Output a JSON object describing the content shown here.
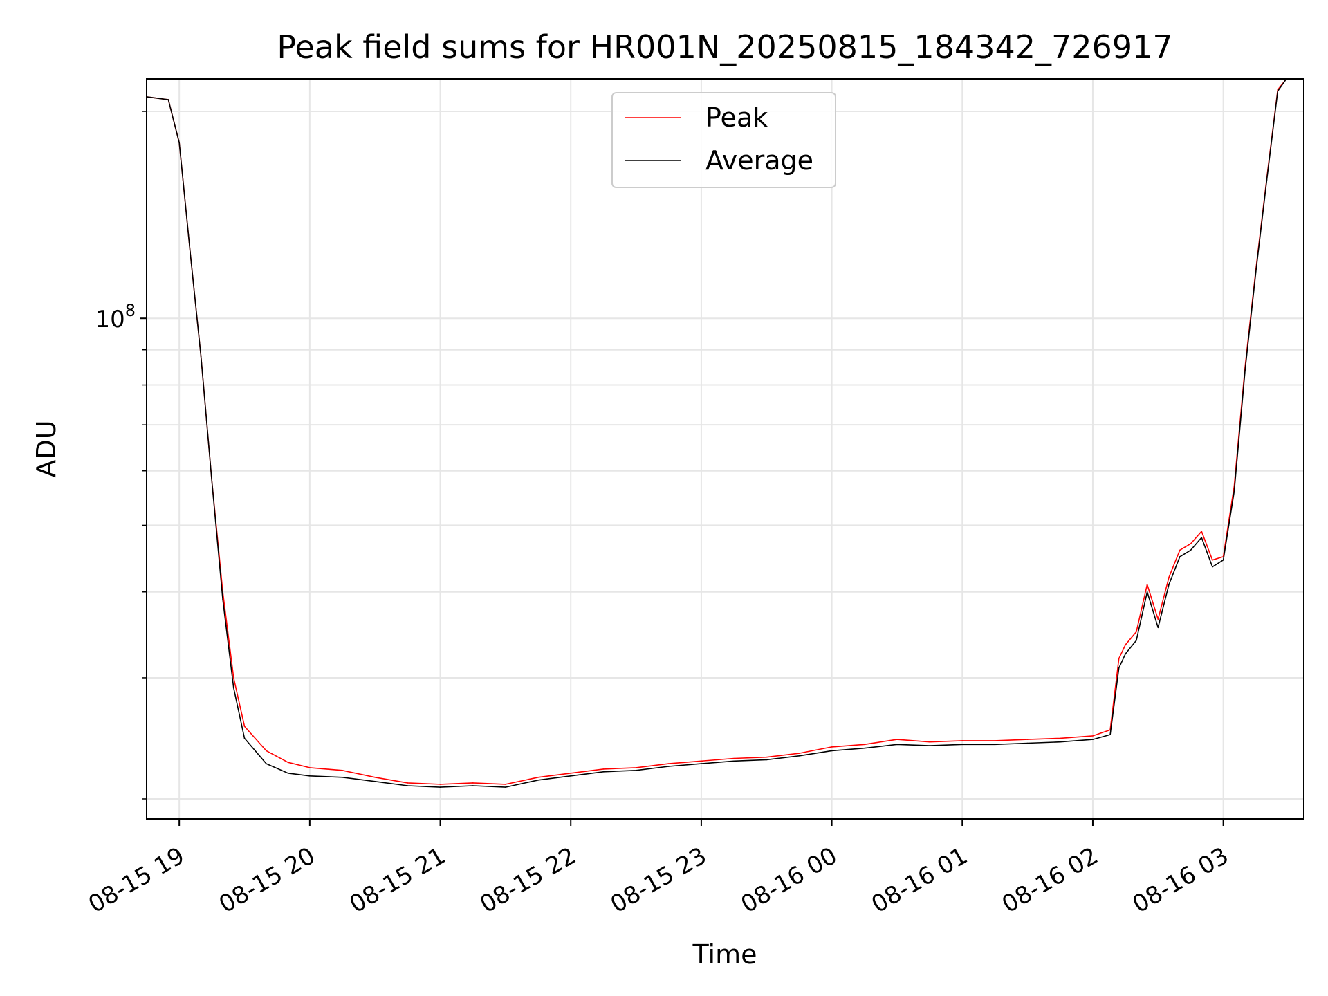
{
  "chart_data": {
    "type": "line",
    "title": "Peak field sums for HR001N_20250815_184342_726917",
    "xlabel": "Time",
    "ylabel": "ADU",
    "yscale": "log",
    "grid": true,
    "legend_position": "top-center",
    "xlim": [
      "2025-08-15 18:45",
      "2025-08-16 03:37"
    ],
    "ylim": [
      18700000,
      223000000
    ],
    "x_ticks": [
      {
        "value": "2025-08-15 19:00",
        "label": "08-15 19"
      },
      {
        "value": "2025-08-15 20:00",
        "label": "08-15 20"
      },
      {
        "value": "2025-08-15 21:00",
        "label": "08-15 21"
      },
      {
        "value": "2025-08-15 22:00",
        "label": "08-15 22"
      },
      {
        "value": "2025-08-15 23:00",
        "label": "08-15 23"
      },
      {
        "value": "2025-08-16 00:00",
        "label": "08-16 00"
      },
      {
        "value": "2025-08-16 01:00",
        "label": "08-16 01"
      },
      {
        "value": "2025-08-16 02:00",
        "label": "08-16 02"
      },
      {
        "value": "2025-08-16 03:00",
        "label": "08-16 03"
      }
    ],
    "y_major_ticks": [
      {
        "value": 100000000,
        "base": "10",
        "exponent": "8"
      }
    ],
    "y_minor_ticks": [
      20000000,
      30000000,
      40000000,
      50000000,
      60000000,
      70000000,
      80000000,
      90000000,
      200000000
    ],
    "series": [
      {
        "name": "Peak",
        "color": "#ff0000",
        "x": [
          "2025-08-15 18:45",
          "2025-08-15 18:55",
          "2025-08-15 19:00",
          "2025-08-15 19:05",
          "2025-08-15 19:10",
          "2025-08-15 19:15",
          "2025-08-15 19:20",
          "2025-08-15 19:25",
          "2025-08-15 19:30",
          "2025-08-15 19:40",
          "2025-08-15 19:50",
          "2025-08-15 20:00",
          "2025-08-15 20:15",
          "2025-08-15 20:30",
          "2025-08-15 20:45",
          "2025-08-15 21:00",
          "2025-08-15 21:15",
          "2025-08-15 21:30",
          "2025-08-15 21:45",
          "2025-08-15 22:00",
          "2025-08-15 22:15",
          "2025-08-15 22:30",
          "2025-08-15 22:45",
          "2025-08-15 23:00",
          "2025-08-15 23:15",
          "2025-08-15 23:30",
          "2025-08-15 23:45",
          "2025-08-16 00:00",
          "2025-08-16 00:15",
          "2025-08-16 00:30",
          "2025-08-16 00:45",
          "2025-08-16 01:00",
          "2025-08-16 01:15",
          "2025-08-16 01:30",
          "2025-08-16 01:45",
          "2025-08-16 02:00",
          "2025-08-16 02:08",
          "2025-08-16 02:12",
          "2025-08-16 02:15",
          "2025-08-16 02:20",
          "2025-08-16 02:25",
          "2025-08-16 02:30",
          "2025-08-16 02:35",
          "2025-08-16 02:40",
          "2025-08-16 02:45",
          "2025-08-16 02:50",
          "2025-08-16 02:55",
          "2025-08-16 03:00",
          "2025-08-16 03:05",
          "2025-08-16 03:10",
          "2025-08-16 03:15",
          "2025-08-16 03:20",
          "2025-08-16 03:25",
          "2025-08-16 03:29"
        ],
        "y": [
          210000000,
          208000000,
          180000000,
          125000000,
          88000000,
          58000000,
          40000000,
          30000000,
          25500000,
          23500000,
          22600000,
          22200000,
          22000000,
          21500000,
          21100000,
          21000000,
          21100000,
          21000000,
          21500000,
          21800000,
          22100000,
          22200000,
          22500000,
          22700000,
          22900000,
          23000000,
          23300000,
          23800000,
          24000000,
          24400000,
          24200000,
          24300000,
          24300000,
          24400000,
          24500000,
          24700000,
          25200000,
          32000000,
          33500000,
          35000000,
          41000000,
          36500000,
          42000000,
          46000000,
          47000000,
          49000000,
          44500000,
          45000000,
          57000000,
          85000000,
          118000000,
          160000000,
          215000000,
          223000000
        ]
      },
      {
        "name": "Average",
        "color": "#000000",
        "x": [
          "2025-08-15 18:45",
          "2025-08-15 18:55",
          "2025-08-15 19:00",
          "2025-08-15 19:05",
          "2025-08-15 19:10",
          "2025-08-15 19:15",
          "2025-08-15 19:20",
          "2025-08-15 19:25",
          "2025-08-15 19:30",
          "2025-08-15 19:40",
          "2025-08-15 19:50",
          "2025-08-15 20:00",
          "2025-08-15 20:15",
          "2025-08-15 20:30",
          "2025-08-15 20:45",
          "2025-08-15 21:00",
          "2025-08-15 21:15",
          "2025-08-15 21:30",
          "2025-08-15 21:45",
          "2025-08-15 22:00",
          "2025-08-15 22:15",
          "2025-08-15 22:30",
          "2025-08-15 22:45",
          "2025-08-15 23:00",
          "2025-08-15 23:15",
          "2025-08-15 23:30",
          "2025-08-15 23:45",
          "2025-08-16 00:00",
          "2025-08-16 00:15",
          "2025-08-16 00:30",
          "2025-08-16 00:45",
          "2025-08-16 01:00",
          "2025-08-16 01:15",
          "2025-08-16 01:30",
          "2025-08-16 01:45",
          "2025-08-16 02:00",
          "2025-08-16 02:08",
          "2025-08-16 02:12",
          "2025-08-16 02:15",
          "2025-08-16 02:20",
          "2025-08-16 02:25",
          "2025-08-16 02:30",
          "2025-08-16 02:35",
          "2025-08-16 02:40",
          "2025-08-16 02:45",
          "2025-08-16 02:50",
          "2025-08-16 02:55",
          "2025-08-16 03:00",
          "2025-08-16 03:05",
          "2025-08-16 03:10",
          "2025-08-16 03:15",
          "2025-08-16 03:20",
          "2025-08-16 03:25",
          "2025-08-16 03:29"
        ],
        "y": [
          210000000,
          208000000,
          180000000,
          125000000,
          88000000,
          58000000,
          39000000,
          29000000,
          24500000,
          22500000,
          21800000,
          21600000,
          21500000,
          21200000,
          20900000,
          20800000,
          20900000,
          20800000,
          21300000,
          21600000,
          21900000,
          22000000,
          22300000,
          22500000,
          22700000,
          22800000,
          23100000,
          23500000,
          23700000,
          24000000,
          23900000,
          24000000,
          24000000,
          24100000,
          24200000,
          24400000,
          24800000,
          31000000,
          32500000,
          34000000,
          40000000,
          35500000,
          41000000,
          45000000,
          46000000,
          48000000,
          43500000,
          44500000,
          56000000,
          84000000,
          117000000,
          159000000,
          214000000,
          223000000
        ]
      }
    ]
  }
}
